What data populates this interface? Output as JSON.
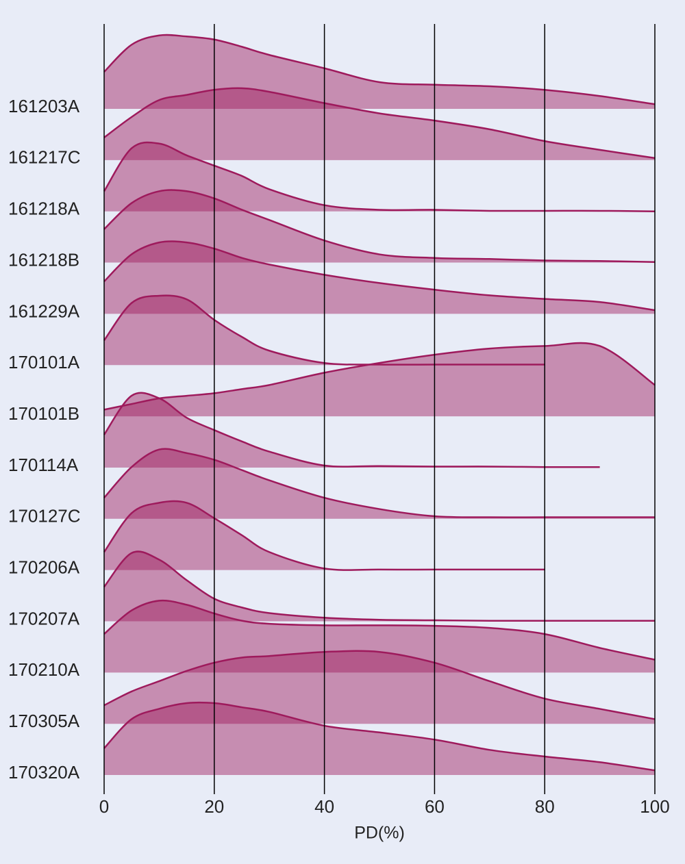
{
  "chart_data": {
    "type": "ridgeline",
    "x_label": "PD(%)",
    "x": [
      0,
      5,
      10,
      15,
      20,
      25,
      30,
      40,
      50,
      60,
      70,
      80,
      90,
      100
    ],
    "xlim": [
      0,
      100
    ],
    "xticks": [
      0,
      20,
      40,
      60,
      80,
      100
    ],
    "grid": true,
    "color": "#9e1a5c",
    "series": [
      {
        "name": "161203A",
        "values": [
          0.72,
          1.25,
          1.43,
          1.41,
          1.35,
          1.21,
          1.05,
          0.79,
          0.52,
          0.47,
          0.44,
          0.37,
          0.25,
          0.09
        ]
      },
      {
        "name": "161217C",
        "values": [
          0.44,
          0.84,
          1.17,
          1.27,
          1.37,
          1.4,
          1.33,
          1.11,
          0.91,
          0.77,
          0.6,
          0.37,
          0.2,
          0.04
        ]
      },
      {
        "name": "161218A",
        "values": [
          0.39,
          1.23,
          1.32,
          1.09,
          0.89,
          0.69,
          0.43,
          0.12,
          0.03,
          0.03,
          0.01,
          0.01,
          0.01,
          0
        ]
      },
      {
        "name": "161218B",
        "values": [
          0.65,
          1.16,
          1.39,
          1.39,
          1.25,
          1.03,
          0.83,
          0.43,
          0.16,
          0.09,
          0.07,
          0.04,
          0.03,
          0.01
        ]
      },
      {
        "name": "161229A",
        "values": [
          0.63,
          1.16,
          1.39,
          1.39,
          1.27,
          1.09,
          0.96,
          0.76,
          0.6,
          0.47,
          0.36,
          0.29,
          0.23,
          0.07
        ]
      },
      {
        "name": "170101A",
        "values": [
          0.48,
          1.21,
          1.35,
          1.28,
          0.88,
          0.55,
          0.28,
          0.04,
          0.01,
          0.01,
          0.01,
          0.01,
          null,
          null
        ]
      },
      {
        "name": "170101B",
        "values": [
          0.13,
          0.24,
          0.35,
          0.4,
          0.45,
          0.53,
          0.61,
          0.85,
          1.04,
          1.2,
          1.32,
          1.37,
          1.37,
          0.61
        ]
      },
      {
        "name": "170114A",
        "values": [
          0.64,
          1.4,
          1.35,
          0.97,
          0.73,
          0.51,
          0.31,
          0.04,
          0.03,
          0.02,
          0.02,
          0.01,
          0.01,
          null
        ]
      },
      {
        "name": "170127C",
        "values": [
          0.41,
          1.01,
          1.35,
          1.28,
          1.15,
          0.95,
          0.75,
          0.41,
          0.19,
          0.05,
          0.03,
          0.03,
          0.03,
          0.03
        ]
      },
      {
        "name": "170206A",
        "values": [
          0.35,
          1.11,
          1.31,
          1.31,
          1.01,
          0.68,
          0.35,
          0.03,
          0.01,
          0.01,
          0.01,
          0.01,
          null,
          null
        ]
      },
      {
        "name": "170207A",
        "values": [
          0.67,
          1.33,
          1.2,
          0.8,
          0.44,
          0.27,
          0.16,
          0.07,
          0.03,
          0.02,
          0.01,
          0.01,
          0.01,
          0.01
        ]
      },
      {
        "name": "170210A",
        "values": [
          0.75,
          1.21,
          1.4,
          1.32,
          1.15,
          1.01,
          0.95,
          0.92,
          0.92,
          0.91,
          0.87,
          0.75,
          0.48,
          0.25
        ]
      },
      {
        "name": "170305A",
        "values": [
          0.36,
          0.63,
          0.83,
          1.03,
          1.19,
          1.29,
          1.32,
          1.4,
          1.4,
          1.19,
          0.83,
          0.49,
          0.29,
          0.09
        ]
      },
      {
        "name": "170320A",
        "values": [
          0.52,
          1.09,
          1.29,
          1.4,
          1.4,
          1.32,
          1.23,
          0.96,
          0.83,
          0.69,
          0.49,
          0.36,
          0.25,
          0.09
        ]
      }
    ]
  }
}
